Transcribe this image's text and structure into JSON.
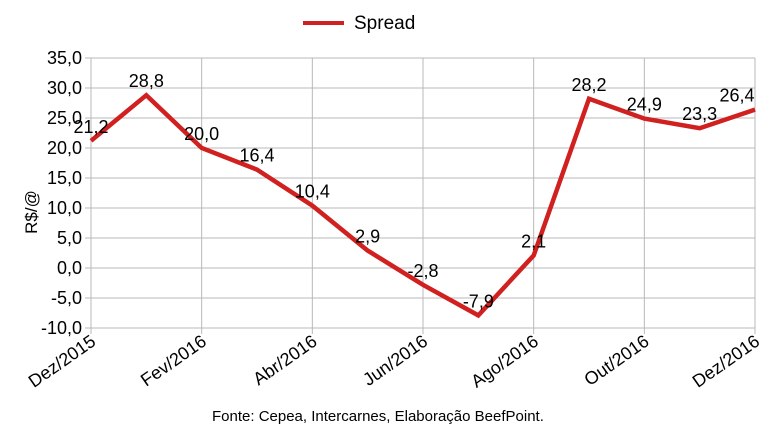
{
  "chart_data": {
    "type": "line",
    "title": "",
    "xlabel": "",
    "ylabel": "R$/@",
    "ylim": [
      -10,
      35
    ],
    "yticks": [
      "35,0",
      "30,0",
      "25,0",
      "20,0",
      "15,0",
      "10,0",
      "5,0",
      "0,0",
      "-5,0",
      "-10,0"
    ],
    "x": [
      "Dez/2015",
      "Jan/2016",
      "Fev/2016",
      "Mar/2016",
      "Abr/2016",
      "Mai/2016",
      "Jun/2016",
      "Jul/2016",
      "Ago/2016",
      "Set/2016",
      "Out/2016",
      "Nov/2016",
      "Dez/2016"
    ],
    "xtick_labels": [
      "Dez/2015",
      "Fev/2016",
      "Abr/2016",
      "Jun/2016",
      "Ago/2016",
      "Out/2016",
      "Dez/2016"
    ],
    "grid": "horizontal",
    "legend_position": "top",
    "series": [
      {
        "name": "Spread",
        "color": "#d12020",
        "values": [
          21.2,
          28.8,
          20.0,
          16.4,
          10.4,
          2.9,
          -2.8,
          -7.9,
          2.1,
          28.2,
          24.9,
          23.3,
          26.4
        ],
        "labels": [
          "21,2",
          "28,8",
          "20,0",
          "16,4",
          "10,4",
          "2,9",
          "-2,8",
          "-7,9",
          "2,1",
          "28,2",
          "24,9",
          "23,3",
          "26,4"
        ]
      }
    ]
  },
  "source": "Fonte: Cepea, Intercarnes, Elaboração BeefPoint."
}
